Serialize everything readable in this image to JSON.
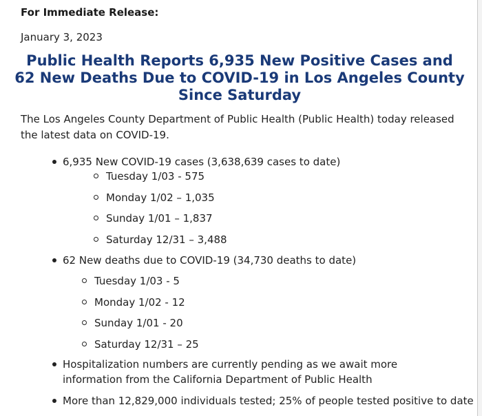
{
  "release_label": "For Immediate Release:",
  "date": "January 3, 2023",
  "headline": "Public Health Reports 6,935 New Positive Cases and 62 New Deaths Due to COVID-19 in Los Angeles County Since Saturday",
  "intro": "The Los Angeles County Department of Public Health (Public Health) today released the latest data on COVID-19.",
  "bullets": [
    {
      "text": "6,935 New COVID-19 cases (3,638,639 cases to date)",
      "sub": [
        "Tuesday 1/03 - 575",
        "Monday 1/02 – 1,035",
        "Sunday 1/01 – 1,837",
        "Saturday 12/31 – 3,488"
      ]
    },
    {
      "text": "62 New deaths due to COVID-19 (34,730 deaths to date)",
      "sub": [
        "Tuesday 1/03 - 5",
        "Monday 1/02 - 12",
        "Sunday 1/01 - 20",
        "Saturday 12/31 – 25"
      ]
    },
    {
      "text": "Hospitalization numbers are currently pending as we await more information from the California Department of Public Health",
      "sub": []
    },
    {
      "text": "More than 12,829,000 individuals tested; 25% of people tested positive to date",
      "sub": []
    }
  ]
}
